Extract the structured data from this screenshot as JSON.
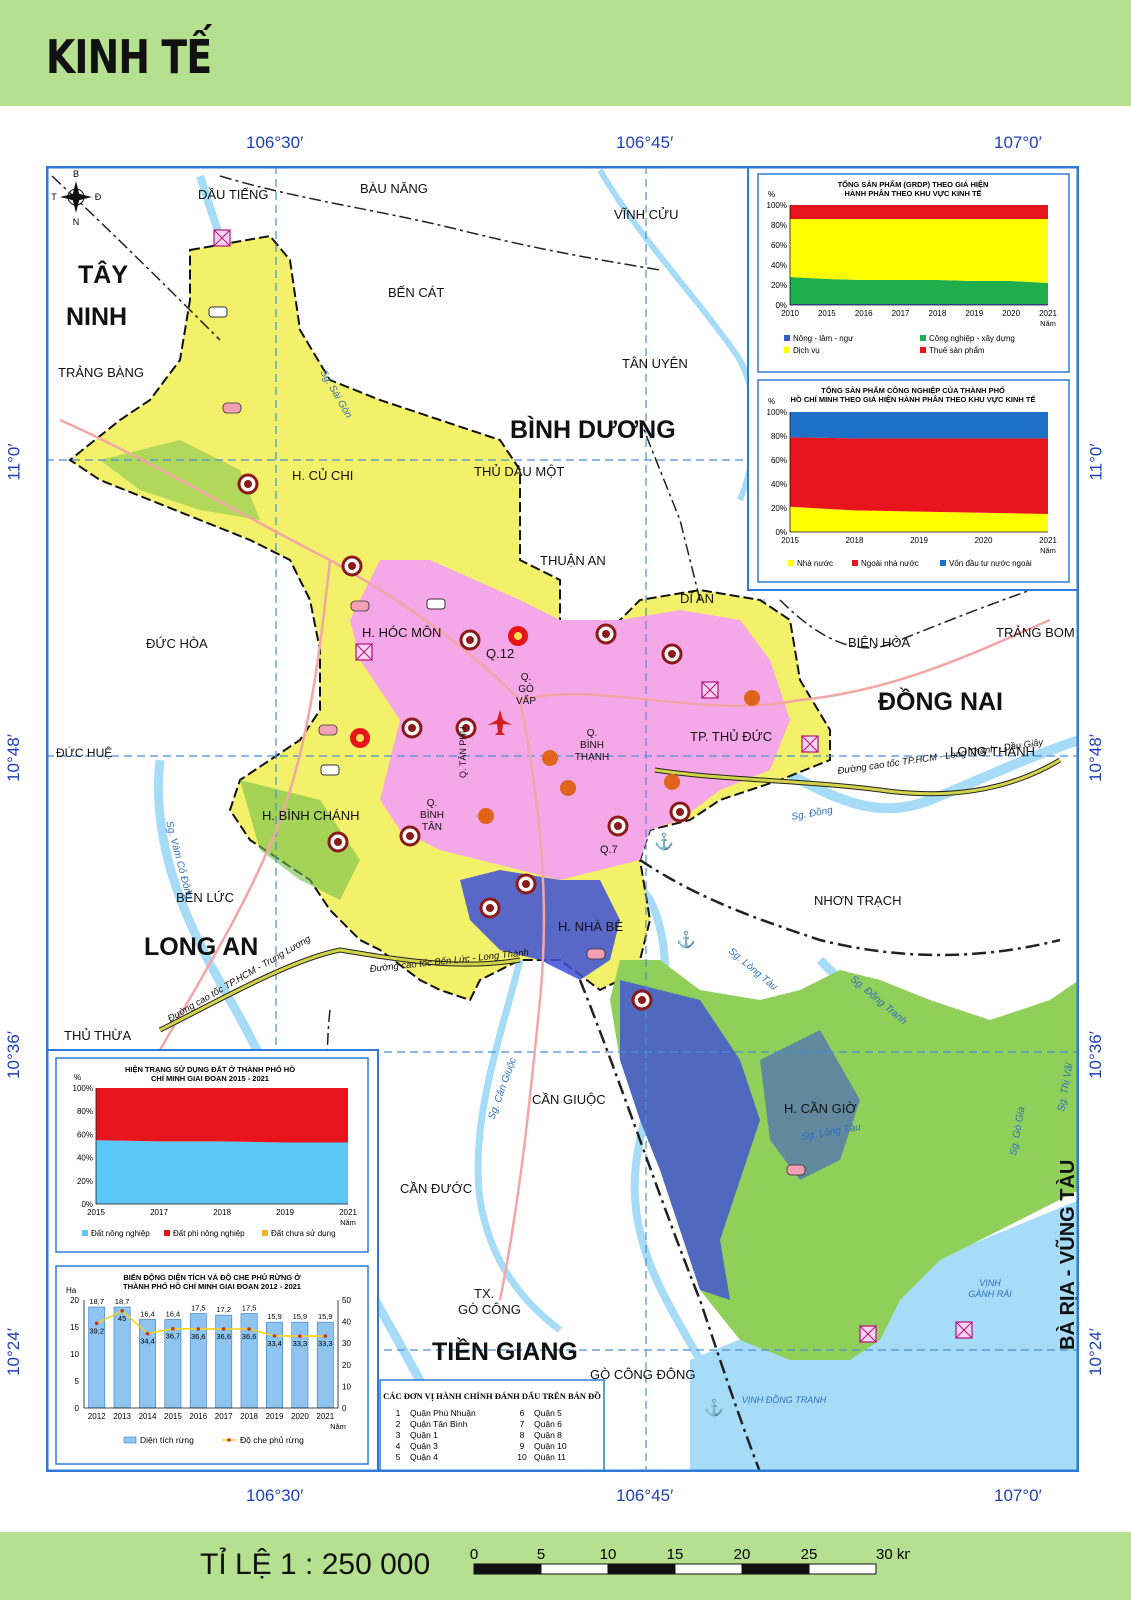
{
  "title": "KINH TẾ",
  "scale_label": "TỈ LỆ 1 : 250 000",
  "scale_ticks": [
    "0",
    "5",
    "10",
    "15",
    "20",
    "25",
    "30 km"
  ],
  "coords": {
    "top": [
      "106°30′",
      "106°45′",
      "107°0′"
    ],
    "bottom": [
      "106°30′",
      "106°45′",
      "107°0′"
    ],
    "left": [
      "11°0′",
      "10°48′",
      "10°36′",
      "10°24′"
    ],
    "right": [
      "11°0′",
      "10°48′",
      "10°36′",
      "10°24′"
    ]
  },
  "compass": {
    "n": "N",
    "s": "B",
    "e": "Đ",
    "w": "T"
  },
  "map_labels": {
    "provinces": {
      "tay_ninh_1": "TÂY",
      "tay_ninh_2": "NINH",
      "binh_duong": "BÌNH DƯƠNG",
      "dong_nai": "ĐỒNG NAI",
      "long_an": "LONG AN",
      "tien_giang": "TIỀN GIANG",
      "ba_ria": "BÀ RỊA - VŨNG TÀU"
    },
    "places": {
      "dau_tieng": "DẦU TIẾNG",
      "bau_bang": "BÀU NĂNG",
      "vinh_cuu": "VĨNH CỬU",
      "ben_cat": "BẾN CÁT",
      "tan_uyen": "TÂN UYÊN",
      "trang_bang": "TRẢNG BÀNG",
      "thu_dau_mot": "THỦ DẦU MỘT",
      "thuan_an": "THUẬN AN",
      "di_an": "DĨ AN",
      "bien_hoa": "BIÊN HÒA",
      "trang_bom": "TRẢNG BOM",
      "duc_hoa": "ĐỨC HÒA",
      "duc_hue": "ĐỨC HUỆ",
      "long_thanh": "LONG THÀNH",
      "ben_luc": "BẾN LỨC",
      "nhon_trach": "NHƠN TRẠCH",
      "thu_thua": "THỦ THỪA",
      "can_giuoc": "CẦN GIUỘC",
      "can_duoc": "CẦN ĐƯỚC",
      "tx": "TX.",
      "go_cong": "GÒ CÔNG",
      "go_cong_dong": "GÒ CÔNG ĐÔNG"
    },
    "districts": {
      "cu_chi": "H. CỦ CHI",
      "hoc_mon": "H. HÓC MÔN",
      "q12": "Q.12",
      "go_vap_1": "Q.",
      "go_vap_2": "GÒ",
      "go_vap_3": "VẤP",
      "binh_thanh_1": "Q.",
      "binh_thanh_2": "BÌNH",
      "binh_thanh_3": "THẠNH",
      "thu_duc": "TP. THỦ ĐỨC",
      "binh_chanh": "H. BÌNH CHÁNH",
      "binh_tan_1": "Q.",
      "binh_tan_2": "BÌNH",
      "binh_tan_3": "TÂN",
      "tan_phu": "Q. TÂN PHÚ",
      "q7": "Q.7",
      "nha_be": "H. NHÀ BÈ",
      "can_gio": "H. CẦN GIỜ"
    },
    "rivers": {
      "sai_gon": "Sg. Sài Gòn",
      "dong_nai": "Sg. Đồng",
      "long_tau": "Sg. Lòng Tàu",
      "long_tau_2": "Sg. Lòng Tàu",
      "vam_co": "Sg. Vàm Cỏ Đông",
      "can_giuoc": "Sg. Cần Giuộc",
      "dong_tranh": "Sg. Đồng Tranh",
      "thi_vai": "Sg. Thị Vải",
      "go_gia": "Sg. Gò Gia"
    },
    "sea": {
      "ganh_rai_1": "VỊNH",
      "ganh_rai_2": "GÀNH RÁI",
      "dong_tranh_bay": "VỊNH ĐỒNG TRANH"
    },
    "highways": {
      "long_thanh": "Đường cao tốc TP.HCM - Long Thành - Dầu Giây",
      "trung_luong": "Đường cao tốc TP.HCM - Trung Lương",
      "ben_luc": "Đường cao tốc Bến Lức - Long Thành"
    }
  },
  "district_key": {
    "title": "CÁC ĐƠN VỊ HÀNH CHÍNH ĐÁNH DẤU TRÊN BẢN ĐỒ",
    "items": [
      {
        "n": "1",
        "name": "Quận Phú Nhuận"
      },
      {
        "n": "2",
        "name": "Quận Tân Bình"
      },
      {
        "n": "3",
        "name": "Quận 1"
      },
      {
        "n": "4",
        "name": "Quận 3"
      },
      {
        "n": "5",
        "name": "Quận 4"
      },
      {
        "n": "6",
        "name": "Quận 5"
      },
      {
        "n": "7",
        "name": "Quận 6"
      },
      {
        "n": "8",
        "name": "Quận 8"
      },
      {
        "n": "9",
        "name": "Quận 10"
      },
      {
        "n": "10",
        "name": "Quận 11"
      }
    ]
  },
  "chart_data": [
    {
      "type": "area",
      "stacked": "percent",
      "title": "TỔNG SẢN PHẨM (GRDP) THEO GIÁ HIỆN HÀNH PHÂN THEO KHU VỰC KINH TẾ",
      "ylabel": "%",
      "xlabel": "Năm",
      "x": [
        "2010",
        "2015",
        "2016",
        "2017",
        "2018",
        "2019",
        "2020",
        "2021"
      ],
      "yticks": [
        "0%",
        "20%",
        "40%",
        "60%",
        "80%",
        "100%"
      ],
      "ylim": [
        0,
        100
      ],
      "legend": [
        "Nông - lâm - ngư",
        "Công nghiệp - xây dựng",
        "Dịch vụ",
        "Thuế sản phẩm"
      ],
      "colors": [
        "#3a5ec9",
        "#1fae4b",
        "#ffff00",
        "#e8141b"
      ],
      "series": [
        {
          "name": "Nông - lâm - ngư",
          "values": [
            1,
            1,
            1,
            1,
            1,
            1,
            1,
            1
          ]
        },
        {
          "name": "Công nghiệp - xây dựng",
          "values": [
            27,
            25,
            24,
            24,
            24,
            23,
            23,
            21
          ]
        },
        {
          "name": "Dịch vụ",
          "values": [
            58,
            60,
            61,
            61,
            61,
            62,
            62,
            64
          ]
        },
        {
          "name": "Thuế sản phẩm",
          "values": [
            14,
            14,
            14,
            14,
            14,
            14,
            14,
            14
          ]
        }
      ]
    },
    {
      "type": "area",
      "stacked": "percent",
      "title": "TỔNG SẢN PHẨM CÔNG NGHIỆP CỦA THÀNH PHỐ HỒ CHÍ MINH THEO GIÁ HIỆN HÀNH PHÂN THEO KHU VỰC KINH TẾ",
      "ylabel": "%",
      "xlabel": "Năm",
      "x": [
        "2015",
        "2018",
        "2019",
        "2020",
        "2021"
      ],
      "yticks": [
        "0%",
        "20%",
        "40%",
        "60%",
        "80%",
        "100%"
      ],
      "ylim": [
        0,
        100
      ],
      "legend": [
        "Nhà nước",
        "Ngoài nhà nước",
        "Vốn đầu tư nước ngoài"
      ],
      "colors": [
        "#ffff00",
        "#e8141b",
        "#1e6fc8"
      ],
      "series": [
        {
          "name": "Nhà nước",
          "values": [
            21,
            18,
            17,
            16,
            15
          ]
        },
        {
          "name": "Ngoài nhà nước",
          "values": [
            58,
            60,
            61,
            62,
            63
          ]
        },
        {
          "name": "Vốn đầu tư nước ngoài",
          "values": [
            21,
            22,
            22,
            22,
            22
          ]
        }
      ]
    },
    {
      "type": "area",
      "stacked": "percent",
      "title": "HIỆN TRẠNG SỬ DỤNG ĐẤT Ở THÀNH PHỐ HỒ CHÍ MINH GIAI ĐOẠN 2015 - 2021",
      "ylabel": "%",
      "xlabel": "Năm",
      "x": [
        "2015",
        "2017",
        "2018",
        "2019",
        "2021"
      ],
      "yticks": [
        "0%",
        "20%",
        "40%",
        "60%",
        "80%",
        "100%"
      ],
      "ylim": [
        0,
        100
      ],
      "legend": [
        "Đất nông nghiệp",
        "Đất phi nông nghiệp",
        "Đất chưa sử dụng"
      ],
      "colors": [
        "#5bc8f5",
        "#e8141b",
        "#f2b12a"
      ],
      "series": [
        {
          "name": "Đất nông nghiệp",
          "values": [
            55,
            54,
            54,
            53,
            53
          ]
        },
        {
          "name": "Đất phi nông nghiệp",
          "values": [
            45,
            46,
            46,
            47,
            47
          ]
        },
        {
          "name": "Đất chưa sử dụng",
          "values": [
            0,
            0,
            0,
            0,
            0
          ]
        }
      ]
    },
    {
      "type": "bar+line",
      "title": "BIẾN ĐỘNG DIỆN TÍCH VÀ ĐỘ CHE PHỦ RỪNG Ở THÀNH PHỐ HỒ CHÍ MINH GIAI ĐOẠN 2012 - 2021",
      "ylabel_left": "Ha",
      "xlabel": "Năm",
      "categories": [
        "2012",
        "2013",
        "2014",
        "2015",
        "2016",
        "2017",
        "2018",
        "2019",
        "2020",
        "2021"
      ],
      "ylim_left": [
        0,
        20
      ],
      "yticks_left": [
        "0",
        "5",
        "10",
        "15",
        "20"
      ],
      "ylim_right": [
        0,
        50
      ],
      "yticks_right": [
        "0",
        "10",
        "20",
        "30",
        "40",
        "50"
      ],
      "legend": [
        "Diện tích rừng",
        "Độ che phủ rừng"
      ],
      "bar_color": "#8ec4f0",
      "line_color": "#f5d21f",
      "series": [
        {
          "name": "Diện tích rừng",
          "axis": "left",
          "values": [
            18.7,
            18.7,
            16.4,
            16.4,
            17.5,
            17.2,
            17.5,
            15.9,
            15.9,
            15.9
          ],
          "labels": [
            "18,7",
            "18,7",
            "16,4",
            "16,4",
            "17,5",
            "17,2",
            "17,5",
            "15,9",
            "15,9",
            "15,9"
          ]
        },
        {
          "name": "Độ che phủ rừng",
          "axis": "right",
          "values": [
            39.2,
            45,
            34.4,
            36.7,
            36.6,
            36.6,
            36.6,
            33.4,
            33.3,
            33.3
          ],
          "labels": [
            "39,2",
            "45",
            "34,4",
            "36,7",
            "36,6",
            "36,6",
            "36,6",
            "33,4",
            "33,3",
            "33,3"
          ]
        }
      ]
    }
  ]
}
